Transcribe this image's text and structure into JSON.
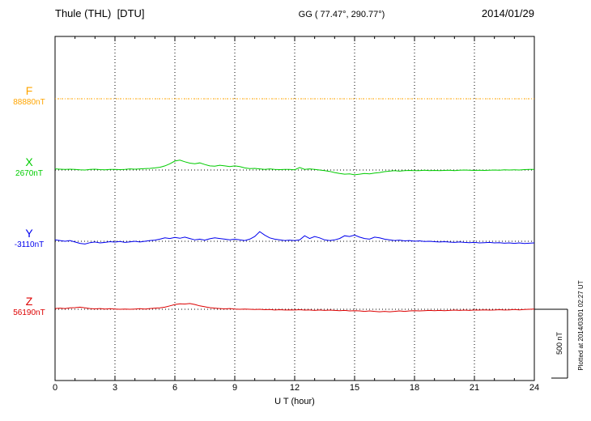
{
  "header": {
    "title": "Thule (THL)  [DTU]",
    "coords": "GG ( 77.47°, 290.77°)",
    "date": "2014/01/29"
  },
  "footer_note": "Plotted at 2014/03/01 02:27 UT",
  "chart_data": {
    "type": "line",
    "title": "Thule (THL) [DTU] magnetogram 2014/01/29",
    "xlabel": "U T (hour)",
    "ylabel": "",
    "x_range": [
      0,
      24
    ],
    "x_ticks": [
      "0",
      "3",
      "6",
      "9",
      "12",
      "15",
      "18",
      "21",
      "24"
    ],
    "grid": "dotted vertical lines every 3 hours; dotted horizontal baseline per component",
    "legend_position": "left-margin labels",
    "sample_interval_hours": 0.25,
    "scale_bar": {
      "label": "500 nT",
      "value_nT": 500
    },
    "series": [
      {
        "name": "F",
        "baseline_label": "88880nT",
        "baseline_nT": 88880,
        "color": "#FFA500",
        "dash": true,
        "offsets_nT": [
          0,
          0,
          0,
          0,
          0,
          0,
          0,
          0,
          0,
          0,
          0,
          0,
          0,
          0,
          0,
          0,
          0,
          0,
          0,
          0,
          0,
          0,
          0,
          0,
          0,
          0,
          0,
          0,
          0,
          0,
          0,
          0,
          0,
          0,
          0,
          0,
          0,
          0,
          0,
          0,
          0,
          0,
          0,
          0,
          0,
          0,
          0,
          0,
          0,
          0,
          0,
          0,
          0,
          0,
          0,
          0,
          0,
          0,
          0,
          0,
          0,
          0,
          0,
          0,
          0,
          0,
          0,
          0,
          0,
          0,
          0,
          0,
          0,
          0,
          0,
          0,
          0,
          0,
          0,
          0,
          0,
          0,
          0,
          0,
          0,
          0,
          0,
          0,
          0,
          0,
          0,
          0,
          0,
          0,
          0,
          0,
          0
        ]
      },
      {
        "name": "X",
        "baseline_label": "2670nT",
        "baseline_nT": 2670,
        "color": "#00CC00",
        "dash": false,
        "offsets_nT": [
          8,
          6,
          4,
          6,
          5,
          2,
          0,
          4,
          6,
          3,
          2,
          4,
          5,
          3,
          5,
          8,
          6,
          8,
          10,
          12,
          15,
          20,
          30,
          45,
          65,
          72,
          60,
          50,
          45,
          52,
          40,
          30,
          28,
          35,
          30,
          25,
          30,
          25,
          15,
          10,
          12,
          8,
          5,
          8,
          5,
          3,
          5,
          4,
          2,
          18,
          5,
          8,
          4,
          0,
          -5,
          -10,
          -18,
          -25,
          -30,
          -28,
          -35,
          -30,
          -25,
          -28,
          -22,
          -18,
          -12,
          -8,
          -5,
          -8,
          -5,
          -3,
          -5,
          -4,
          -2,
          -4,
          -3,
          -5,
          -3,
          -2,
          -4,
          -2,
          0,
          -2,
          -3,
          -1,
          -3,
          -2,
          0,
          -2,
          2,
          0,
          2,
          0,
          3,
          5,
          4
        ]
      },
      {
        "name": "Y",
        "baseline_label": "-3110nT",
        "baseline_nT": -3110,
        "color": "#0000EE",
        "dash": false,
        "offsets_nT": [
          10,
          5,
          0,
          5,
          -5,
          -15,
          -20,
          -10,
          -5,
          -12,
          -8,
          -3,
          -6,
          -2,
          -8,
          -4,
          0,
          -5,
          0,
          5,
          8,
          15,
          25,
          20,
          28,
          22,
          30,
          20,
          10,
          15,
          8,
          18,
          25,
          20,
          15,
          10,
          15,
          10,
          5,
          15,
          35,
          70,
          45,
          25,
          15,
          10,
          5,
          8,
          5,
          10,
          40,
          20,
          35,
          25,
          10,
          5,
          10,
          20,
          40,
          35,
          45,
          30,
          20,
          15,
          30,
          25,
          15,
          10,
          5,
          8,
          3,
          5,
          0,
          3,
          -2,
          0,
          -3,
          -5,
          -3,
          -6,
          -8,
          -5,
          -8,
          -10,
          -8,
          -12,
          -10,
          -8,
          -12,
          -10,
          -14,
          -12,
          -15,
          -12,
          -16,
          -14,
          -12
        ]
      },
      {
        "name": "Z",
        "baseline_label": "56190nT",
        "baseline_nT": 56190,
        "color": "#DD0000",
        "dash": false,
        "offsets_nT": [
          5,
          8,
          5,
          10,
          12,
          15,
          10,
          5,
          3,
          5,
          2,
          4,
          2,
          0,
          2,
          0,
          2,
          4,
          2,
          5,
          8,
          10,
          15,
          25,
          35,
          40,
          38,
          42,
          35,
          25,
          18,
          12,
          8,
          5,
          3,
          5,
          2,
          0,
          2,
          0,
          -2,
          0,
          -3,
          -2,
          -5,
          -3,
          -5,
          -4,
          -5,
          -3,
          -6,
          -5,
          -8,
          -5,
          -8,
          -6,
          -8,
          -10,
          -8,
          -12,
          -10,
          -12,
          -15,
          -12,
          -15,
          -18,
          -15,
          -18,
          -15,
          -12,
          -15,
          -12,
          -10,
          -12,
          -10,
          -8,
          -10,
          -8,
          -10,
          -8,
          -6,
          -8,
          -6,
          -8,
          -5,
          -6,
          -4,
          -6,
          -5,
          -3,
          -5,
          -4,
          -2,
          -4,
          -2,
          0,
          2
        ]
      }
    ]
  }
}
